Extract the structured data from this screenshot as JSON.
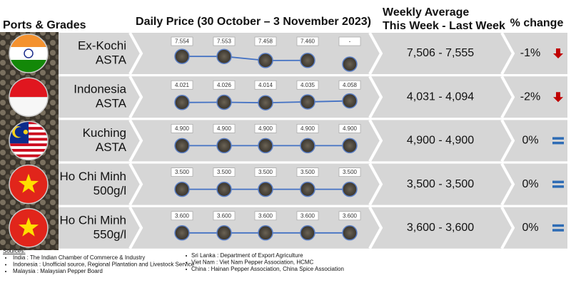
{
  "header": {
    "ports": "Ports & Grades",
    "daily": "Daily Price (30 October – 3 November 2023)",
    "weekly_1": "Weekly Average",
    "weekly_2": "This Week - Last Week",
    "change": "% change"
  },
  "rows": [
    {
      "flag": "india",
      "name": [
        "Ex-Kochi",
        "ASTA"
      ],
      "prices": {
        "values": [
          7.554,
          7.553,
          7.458,
          7.46,
          null
        ],
        "value_labels": [
          "7.554",
          "7.553",
          "7.458",
          "7.460",
          "-"
        ]
      },
      "weekly": "7,506 - 7,555",
      "change": "-1%",
      "trend": "down"
    },
    {
      "flag": "indonesia",
      "name": [
        "Indonesia",
        "ASTA"
      ],
      "prices": {
        "values": [
          4.021,
          4.026,
          4.014,
          4.035,
          4.058
        ],
        "value_labels": [
          "4.021",
          "4.026",
          "4.014",
          "4.035",
          "4.058"
        ]
      },
      "weekly": "4,031 - 4,094",
      "change": "-2%",
      "trend": "down"
    },
    {
      "flag": "malaysia",
      "name": [
        "Kuching",
        "ASTA"
      ],
      "prices": {
        "values": [
          4.9,
          4.9,
          4.9,
          4.9,
          4.9
        ],
        "value_labels": [
          "4.900",
          "4.900",
          "4.900",
          "4.900",
          "4.900"
        ]
      },
      "weekly": "4,900 - 4,900",
      "change": "0%",
      "trend": "flat"
    },
    {
      "flag": "vietnam",
      "name": [
        "Ho Chi Minh",
        "500g/l"
      ],
      "prices": {
        "values": [
          3.5,
          3.5,
          3.5,
          3.5,
          3.5
        ],
        "value_labels": [
          "3.500",
          "3.500",
          "3.500",
          "3.500",
          "3.500"
        ]
      },
      "weekly": "3,500 - 3,500",
      "change": "0%",
      "trend": "flat"
    },
    {
      "flag": "vietnam",
      "name": [
        "Ho Chi Minh",
        "550g/l"
      ],
      "prices": {
        "values": [
          3.6,
          3.6,
          3.6,
          3.6,
          3.6
        ],
        "value_labels": [
          "3.600",
          "3.600",
          "3.600",
          "3.600",
          "3.600"
        ]
      },
      "weekly": "3,600 - 3,600",
      "change": "0%",
      "trend": "flat"
    }
  ],
  "sources": {
    "title": "Sources:",
    "left": [
      "India : The Indian Chamber of Commerce & Industry",
      "Indonesia : Unofficial source, Regional Plantation and Livestock Service",
      "Malaysia : Malaysian Pepper Board"
    ],
    "right": [
      "Sri Lanka : Department of Export Agriculture",
      "Viet Nam : Viet Nam Pepper Association, HCMC",
      "China : Hainan Pepper Association, China Spice Association"
    ]
  }
}
